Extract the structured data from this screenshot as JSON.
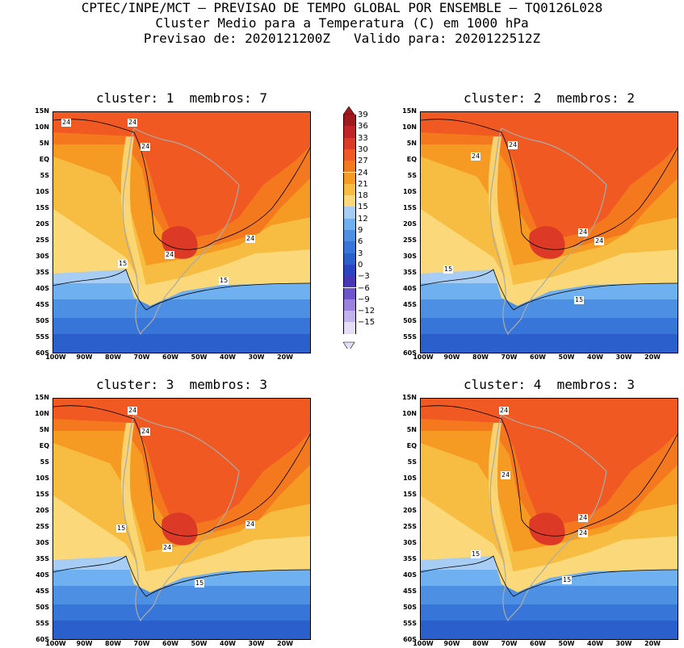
{
  "header": {
    "line1": "CPTEC/INPE/MCT – PREVISAO DE TEMPO GLOBAL POR ENSEMBLE – TQ0126L028",
    "line2": "Cluster Medio para a Temperatura (C) em 1000 hPa",
    "line3": "Previsao de: 2020121200Z   Valido para: 2020122512Z"
  },
  "panels": [
    {
      "title": "cluster: 1  membros: 7"
    },
    {
      "title": "cluster: 2  membros: 2"
    },
    {
      "title": "cluster: 3  membros: 3"
    },
    {
      "title": "cluster: 4  membros: 3"
    }
  ],
  "lat_labels": [
    "15N",
    "10N",
    "5N",
    "EQ",
    "5S",
    "10S",
    "15S",
    "20S",
    "25S",
    "30S",
    "35S",
    "40S",
    "45S",
    "50S",
    "55S",
    "60S"
  ],
  "lon_labels": [
    "100W",
    "90W",
    "80W",
    "70W",
    "60W",
    "50W",
    "40W",
    "30W",
    "20W"
  ],
  "contour_labels": [
    "24",
    "15"
  ],
  "colorbar": {
    "labels": [
      "39",
      "36",
      "33",
      "30",
      "27",
      "24",
      "21",
      "18",
      "15",
      "12",
      "9",
      "6",
      "3",
      "0",
      "−3",
      "−6",
      "−9",
      "−12",
      "−15"
    ],
    "colors": [
      "#a0191e",
      "#c12328",
      "#dc3a26",
      "#f05a22",
      "#f4791e",
      "#f59a22",
      "#f7bd42",
      "#fbd97a",
      "#a7cdf5",
      "#6fb0f0",
      "#4c8fe3",
      "#3776d8",
      "#2b5fcc",
      "#2a44c2",
      "#4737b7",
      "#6f55cc",
      "#9b82dd",
      "#c3b3ec",
      "#e6ddf7"
    ]
  }
}
